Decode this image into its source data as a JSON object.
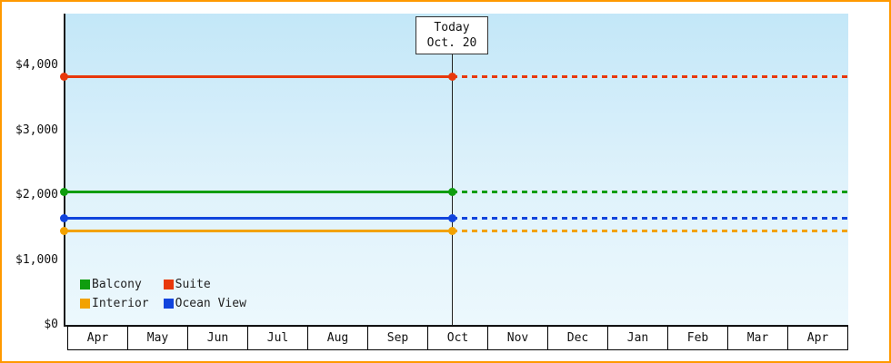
{
  "chart_data": {
    "type": "line",
    "title": "",
    "description": "Cruise cabin price history by category; solid history up to today, dashed projection after",
    "x_categories": [
      "Apr",
      "May",
      "Jun",
      "Jul",
      "Aug",
      "Sep",
      "Oct",
      "Nov",
      "Dec",
      "Jan",
      "Feb",
      "Mar",
      "Apr"
    ],
    "y_tick_labels": [
      "$0",
      "$1,000",
      "$2,000",
      "$3,000",
      "$4,000"
    ],
    "y_tick_values": [
      0,
      1000,
      2000,
      3000,
      4000
    ],
    "ylim": [
      0,
      4000
    ],
    "grid": false,
    "today_marker": {
      "label_line1": "Today",
      "label_line2": "Oct. 20",
      "x_fraction": 0.495
    },
    "series": [
      {
        "name": "Suite",
        "color": "#e8380c",
        "value": 3820,
        "style": "solid-then-dashed"
      },
      {
        "name": "Balcony",
        "color": "#0f9d0f",
        "value": 2050,
        "style": "solid-then-dashed"
      },
      {
        "name": "Ocean View",
        "color": "#1144dd",
        "value": 1650,
        "style": "solid-then-dashed"
      },
      {
        "name": "Interior",
        "color": "#f2a200",
        "value": 1450,
        "style": "solid-then-dashed"
      }
    ],
    "legend": [
      {
        "label": "Balcony",
        "color": "#0f9d0f"
      },
      {
        "label": "Suite",
        "color": "#e8380c"
      },
      {
        "label": "Interior",
        "color": "#f2a200"
      },
      {
        "label": "Ocean View",
        "color": "#1144dd"
      }
    ],
    "legend_position": "bottom-left-inside"
  },
  "colors": {
    "frame_border": "#ff9900",
    "plot_gradient_top": "#c3e7f8",
    "plot_gradient_bottom": "#ecf8fd",
    "axis": "#1a1a1a"
  }
}
